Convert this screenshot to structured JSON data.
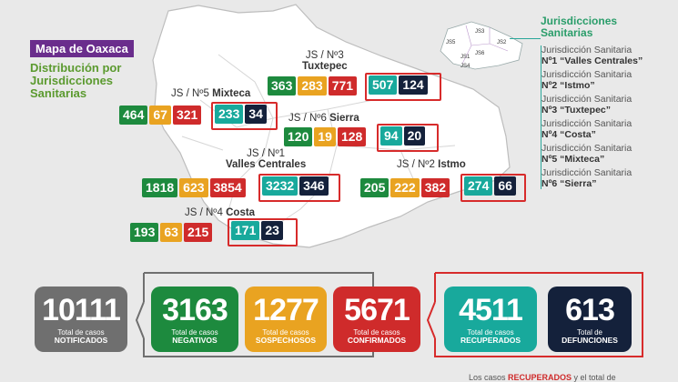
{
  "header": {
    "title": "Mapa de Oaxaca",
    "subtitle": "Distribución por\nJurisdicciones\nSanitarias"
  },
  "regions": [
    {
      "id": "js3",
      "label_prefix": "JS / Nº3",
      "label_name": "Tuxtepec",
      "values": [
        "363",
        "283",
        "771"
      ],
      "highlight": [
        "507",
        "124"
      ]
    },
    {
      "id": "js5",
      "label_prefix": "JS / Nº5",
      "label_name": "Mixteca",
      "values": [
        "464",
        "67",
        "321"
      ],
      "highlight": [
        "233",
        "34"
      ]
    },
    {
      "id": "js6",
      "label_prefix": "JS / Nº6",
      "label_name": "Sierra",
      "values": [
        "120",
        "19",
        "128"
      ],
      "highlight": [
        "94",
        "20"
      ]
    },
    {
      "id": "js1",
      "label_prefix": "JS / Nº1",
      "label_name": "Valles Centrales",
      "values": [
        "1818",
        "623",
        "3854"
      ],
      "highlight": [
        "3232",
        "346"
      ]
    },
    {
      "id": "js2",
      "label_prefix": "JS / Nº2",
      "label_name": "Istmo",
      "values": [
        "205",
        "222",
        "382"
      ],
      "highlight": [
        "274",
        "66"
      ]
    },
    {
      "id": "js4",
      "label_prefix": "JS / Nº4",
      "label_name": "Costa",
      "values": [
        "193",
        "63",
        "215"
      ],
      "highlight": [
        "171",
        "23"
      ]
    }
  ],
  "mini_map_labels": [
    "JS5",
    "JS6",
    "JS3",
    "JS1",
    "JS2",
    "JS4"
  ],
  "legend": {
    "title": "Jurisdicciones\nSanitarias",
    "items": [
      {
        "line1": "Jurisdicción Sanitaria",
        "line2": "Nº1 “Valles Centrales”"
      },
      {
        "line1": "Jurisdicción Sanitaria",
        "line2": "Nº2 “Istmo”"
      },
      {
        "line1": "Jurisdicción Sanitaria",
        "line2": "Nº3 “Tuxtepec”"
      },
      {
        "line1": "Jurisdicción Sanitaria",
        "line2": "Nº4 “Costa”"
      },
      {
        "line1": "Jurisdicción Sanitaria",
        "line2": "Nº5 “Mixteca”"
      },
      {
        "line1": "Jurisdicción Sanitaria",
        "line2": "Nº6 “Sierra”"
      }
    ]
  },
  "totals": [
    {
      "id": "notificados",
      "value": "10111",
      "line1": "Total de casos",
      "line2": "NOTIFICADOS"
    },
    {
      "id": "negativos",
      "value": "3163",
      "line1": "Total de casos",
      "line2": "NEGATIVOS"
    },
    {
      "id": "sospechosos",
      "value": "1277",
      "line1": "Total de casos",
      "line2": "SOSPECHOSOS"
    },
    {
      "id": "confirmados",
      "value": "5671",
      "line1": "Total de casos",
      "line2": "CONFIRMADOS"
    },
    {
      "id": "recuperados",
      "value": "4511",
      "line1": "Total de casos",
      "line2": "RECUPERADOS"
    },
    {
      "id": "defunciones",
      "value": "613",
      "line1": "Total de",
      "line2": "DEFUNCIONES"
    }
  ],
  "footer": {
    "pre": "Los casos ",
    "highlight": "RECUPERADOS",
    "post": " y el total de"
  },
  "colors": {
    "green": "#1d8a3e",
    "orange": "#e9a321",
    "red": "#cf2b2b",
    "teal": "#18a99c",
    "navy": "#14213b",
    "gray": "#6f6f6f",
    "purple": "#6a2d8c"
  }
}
